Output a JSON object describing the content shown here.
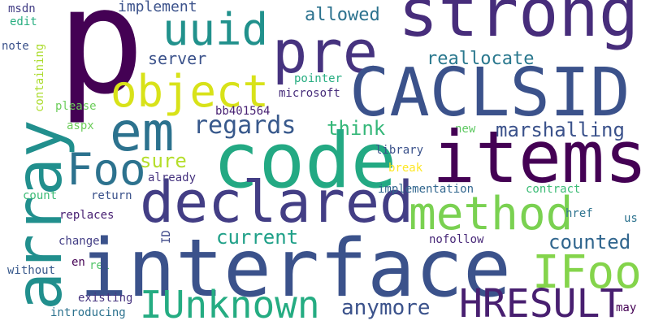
{
  "words": [
    {
      "text": "p",
      "color": "#440154",
      "vertical": false
    },
    {
      "text": "strong",
      "color": "#472d7b",
      "vertical": false
    },
    {
      "text": "pre",
      "color": "#46337f",
      "vertical": false
    },
    {
      "text": "uuid",
      "color": "#21918c",
      "vertical": false
    },
    {
      "text": "allowed",
      "color": "#2c728e",
      "vertical": false
    },
    {
      "text": "implement",
      "color": "#3b528b",
      "vertical": false
    },
    {
      "text": "msdn",
      "color": "#433e85",
      "vertical": false
    },
    {
      "text": "edit",
      "color": "#28ae80",
      "vertical": false
    },
    {
      "text": "note",
      "color": "#3b528b",
      "vertical": false
    },
    {
      "text": "object",
      "color": "#d8e219",
      "vertical": false
    },
    {
      "text": "server",
      "color": "#3b528b",
      "vertical": false
    },
    {
      "text": "reallocate",
      "color": "#2a788e",
      "vertical": false
    },
    {
      "text": "CACLSID",
      "color": "#3b528b",
      "vertical": false
    },
    {
      "text": "pointer",
      "color": "#27ad81",
      "vertical": false
    },
    {
      "text": "microsoft",
      "color": "#472d7b",
      "vertical": false
    },
    {
      "text": "containing",
      "color": "#addc30",
      "vertical": true
    },
    {
      "text": "please",
      "color": "#6ccd5a",
      "vertical": false
    },
    {
      "text": "aspx",
      "color": "#6ccd5a",
      "vertical": false
    },
    {
      "text": "em",
      "color": "#2c728e",
      "vertical": false
    },
    {
      "text": "regards",
      "color": "#38598c",
      "vertical": false
    },
    {
      "text": "bb401564",
      "color": "#482173",
      "vertical": false
    },
    {
      "text": "think",
      "color": "#35b779",
      "vertical": false
    },
    {
      "text": "marshalling",
      "color": "#3b528b",
      "vertical": false
    },
    {
      "text": "new",
      "color": "#5ec962",
      "vertical": false
    },
    {
      "text": "array",
      "color": "#218f8d",
      "vertical": true
    },
    {
      "text": "Foo",
      "color": "#2c728e",
      "vertical": false
    },
    {
      "text": "code",
      "color": "#23a983",
      "vertical": false
    },
    {
      "text": "items",
      "color": "#440154",
      "vertical": false
    },
    {
      "text": "sure",
      "color": "#b5de2b",
      "vertical": false
    },
    {
      "text": "already",
      "color": "#46337f",
      "vertical": false
    },
    {
      "text": "library",
      "color": "#3b528b",
      "vertical": false
    },
    {
      "text": "break",
      "color": "#fde725",
      "vertical": false
    },
    {
      "text": "declared",
      "color": "#433e85",
      "vertical": false
    },
    {
      "text": "count",
      "color": "#3bbb75",
      "vertical": false
    },
    {
      "text": "return",
      "color": "#3b528b",
      "vertical": false
    },
    {
      "text": "implementation",
      "color": "#31668e",
      "vertical": false
    },
    {
      "text": "contract",
      "color": "#3bbb75",
      "vertical": false
    },
    {
      "text": "replaces",
      "color": "#482173",
      "vertical": false
    },
    {
      "text": "method",
      "color": "#7ad151",
      "vertical": false
    },
    {
      "text": "href",
      "color": "#2c728e",
      "vertical": false
    },
    {
      "text": "us",
      "color": "#2c728e",
      "vertical": false
    },
    {
      "text": "ID",
      "color": "#3e4989",
      "vertical": true
    },
    {
      "text": "current",
      "color": "#1fa088",
      "vertical": false
    },
    {
      "text": "change",
      "color": "#433e85",
      "vertical": false
    },
    {
      "text": "counted",
      "color": "#31668e",
      "vertical": false
    },
    {
      "text": "nofollow",
      "color": "#482878",
      "vertical": false
    },
    {
      "text": "without",
      "color": "#38598c",
      "vertical": false
    },
    {
      "text": "en",
      "color": "#440154",
      "vertical": false
    },
    {
      "text": "rel",
      "color": "#52c569",
      "vertical": false
    },
    {
      "text": "interface",
      "color": "#3b528b",
      "vertical": false
    },
    {
      "text": "IFoo",
      "color": "#84d44b",
      "vertical": false
    },
    {
      "text": "existing",
      "color": "#46337f",
      "vertical": false
    },
    {
      "text": "introducing",
      "color": "#2c728e",
      "vertical": false
    },
    {
      "text": "IUnknown",
      "color": "#25ac82",
      "vertical": false
    },
    {
      "text": "anymore",
      "color": "#3b528b",
      "vertical": false
    },
    {
      "text": "HRESULT",
      "color": "#481f70",
      "vertical": false
    },
    {
      "text": "may",
      "color": "#440154",
      "vertical": false
    }
  ]
}
